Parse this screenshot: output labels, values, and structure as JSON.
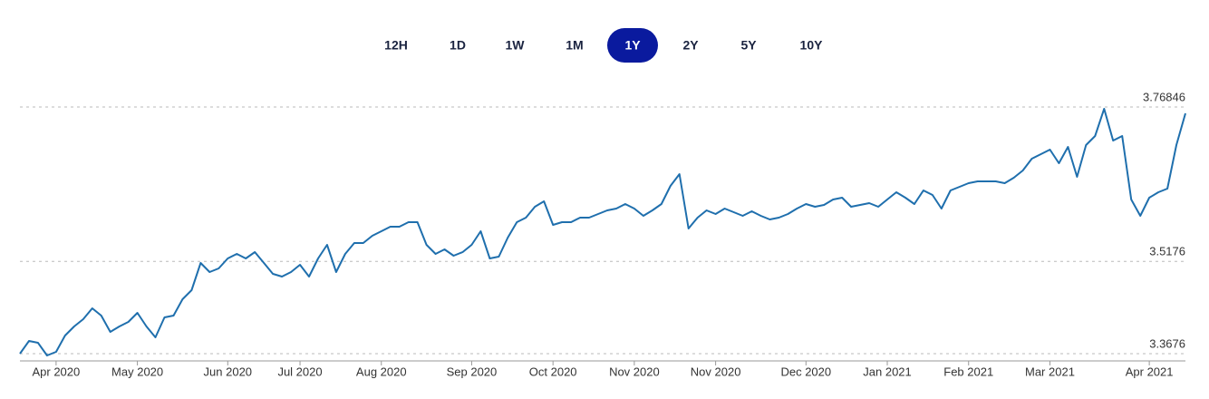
{
  "range_buttons": [
    "12H",
    "1D",
    "1W",
    "1M",
    "1Y",
    "2Y",
    "5Y",
    "10Y"
  ],
  "selected_button": 4,
  "chart_data": {
    "type": "line",
    "series": [
      {
        "color": "#1f6fad",
        "values": [
          3.3676,
          3.3882,
          3.3853,
          3.3647,
          3.3705,
          3.3971,
          3.4118,
          3.4236,
          3.4413,
          3.4295,
          3.403,
          3.4118,
          3.4192,
          3.4339,
          3.4118,
          3.3941,
          3.4265,
          3.4295,
          3.456,
          3.4708,
          3.515,
          3.5002,
          3.5061,
          3.5223,
          3.5297,
          3.5223,
          3.5327,
          3.515,
          3.4973,
          3.4929,
          3.5002,
          3.512,
          3.4929,
          3.5223,
          3.5444,
          3.5002,
          3.5297,
          3.5474,
          3.5474,
          3.5592,
          3.5666,
          3.5739,
          3.5739,
          3.5813,
          3.5813,
          3.5444,
          3.5297,
          3.5371,
          3.5268,
          3.5327,
          3.5444,
          3.5666,
          3.5223,
          3.5253,
          3.5562,
          3.5813,
          3.5887,
          3.6063,
          3.6152,
          3.5769,
          3.5813,
          3.5813,
          3.5887,
          3.5887,
          3.5945,
          3.6004,
          3.6034,
          3.6108,
          3.6034,
          3.5916,
          3.6004,
          3.6108,
          3.6402,
          3.6594,
          3.571,
          3.5887,
          3.6004,
          3.5945,
          3.6034,
          3.5975,
          3.5916,
          3.599,
          3.5916,
          3.5857,
          3.5887,
          3.5945,
          3.6034,
          3.6108,
          3.6063,
          3.6093,
          3.6181,
          3.6211,
          3.6063,
          3.6093,
          3.6122,
          3.6063,
          3.6181,
          3.6299,
          3.6211,
          3.6108,
          3.6329,
          3.6255,
          3.6034,
          3.6329,
          3.6388,
          3.6447,
          3.6476,
          3.6476,
          3.6476,
          3.6447,
          3.6535,
          3.6653,
          3.6845,
          3.6918,
          3.6992,
          3.6771,
          3.7036,
          3.655,
          3.7066,
          3.7213,
          3.7655,
          3.7139,
          3.7213,
          3.6181,
          3.5916,
          3.6211,
          3.6299,
          3.6358,
          3.7066,
          3.7581
        ]
      }
    ],
    "xlim": [
      0,
      129
    ],
    "xticks": [
      {
        "value": 4,
        "label": "Apr 2020"
      },
      {
        "value": 13,
        "label": "May 2020"
      },
      {
        "value": 23,
        "label": "Jun 2020"
      },
      {
        "value": 31,
        "label": "Jul 2020"
      },
      {
        "value": 40,
        "label": "Aug 2020"
      },
      {
        "value": 50,
        "label": "Sep 2020"
      },
      {
        "value": 59,
        "label": "Oct 2020"
      },
      {
        "value": 68,
        "label": "Nov 2020"
      },
      {
        "value": 77,
        "label": "Nov 2020"
      },
      {
        "value": 87,
        "label": "Dec 2020"
      },
      {
        "value": 96,
        "label": "Jan 2021"
      },
      {
        "value": 105,
        "label": "Feb 2021"
      },
      {
        "value": 114,
        "label": "Mar 2021"
      },
      {
        "value": 125,
        "label": "Apr 2021"
      }
    ],
    "ylim": [
      3.3676,
      3.76846
    ],
    "yticks": [
      3.3676,
      3.5176,
      3.76846
    ],
    "grid": true
  }
}
